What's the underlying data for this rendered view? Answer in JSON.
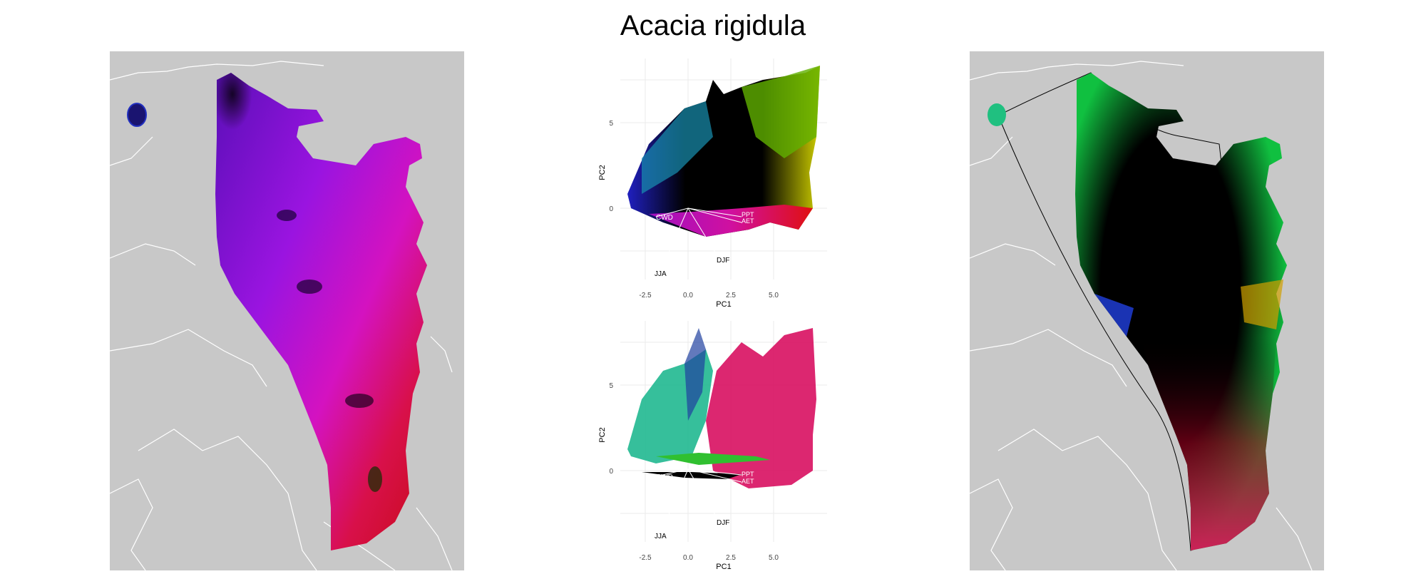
{
  "figure": {
    "title": "Acacia rigidula"
  },
  "colors": {
    "land": "#c8c8c8",
    "borders": "#ffffff",
    "purple": "#7a10d6",
    "magenta": "#d010c8",
    "red": "#e0101c",
    "green": "#10c848",
    "black": "#000000"
  },
  "pca_top": {
    "xlabel": "PC1",
    "ylabel": "PC2",
    "x_ticks": [
      "-2.5",
      "0.0",
      "2.5",
      "5.0"
    ],
    "y_ticks": [
      "0",
      "5"
    ],
    "loadings": [
      "CWD",
      "PPT",
      "AET",
      "JJA",
      "DJF"
    ]
  },
  "pca_bottom": {
    "xlabel": "PC1",
    "ylabel": "PC2",
    "x_ticks": [
      "-2.5",
      "0.0",
      "2.5",
      "5.0"
    ],
    "y_ticks": [
      "0",
      "5"
    ],
    "loadings": [
      "CWD",
      "PPT",
      "AET",
      "JJA",
      "DJF"
    ]
  }
}
